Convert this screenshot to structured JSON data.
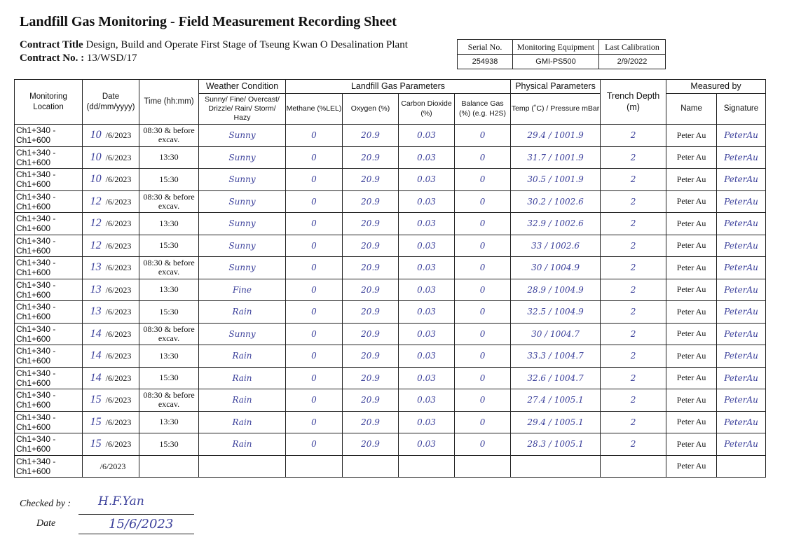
{
  "title": "Landfill Gas Monitoring - Field Measurement Recording Sheet",
  "contract_title_label": "Contract Title",
  "contract_title": "Design, Build and Operate First Stage of Tseung Kwan O Desalination Plant",
  "contract_no_label": "Contract No. :",
  "contract_no": "13/WSD/17",
  "equipment": {
    "headers": [
      "Serial No.",
      "Monitoring Equipment",
      "Last Calibration"
    ],
    "values": [
      "254938",
      "GMI-PS500",
      "2/9/2022"
    ]
  },
  "headers": {
    "location": "Monitoring Location",
    "date": "Date (dd/mm/yyyy)",
    "time": "Time (hh:mm)",
    "weather": "Weather Condition",
    "weather_sub": "Sunny/ Fine/ Overcast/ Drizzle/ Rain/ Storm/ Hazy",
    "gas": "Landfill Gas Parameters",
    "methane": "Methane (%LEL)",
    "oxygen": "Oxygen (%)",
    "co2": "Carbon Dioxide (%)",
    "balance": "Balance Gas (%) (e.g. H2S)",
    "physical": "Physical Parameters",
    "temp": "Temp (˚C) / Pressure mBar",
    "trench": "Trench Depth (m)",
    "measured": "Measured by",
    "name": "Name",
    "signature": "Signature"
  },
  "rows": [
    {
      "location": "Ch1+340 - Ch1+600",
      "day": "10",
      "date": "/6/2023",
      "time": "08:30 & before excav.",
      "weather": "Sunny",
      "methane": "0",
      "oxygen": "20.9",
      "co2": "0.03",
      "balance": "0",
      "temp_pressure": "29.4 / 1001.9",
      "trench": "2",
      "name": "Peter Au",
      "signature": "PeterAu"
    },
    {
      "location": "Ch1+340 - Ch1+600",
      "day": "10",
      "date": "/6/2023",
      "time": "13:30",
      "weather": "Sunny",
      "methane": "0",
      "oxygen": "20.9",
      "co2": "0.03",
      "balance": "0",
      "temp_pressure": "31.7 / 1001.9",
      "trench": "2",
      "name": "Peter Au",
      "signature": "PeterAu"
    },
    {
      "location": "Ch1+340 - Ch1+600",
      "day": "10",
      "date": "/6/2023",
      "time": "15:30",
      "weather": "Sunny",
      "methane": "0",
      "oxygen": "20.9",
      "co2": "0.03",
      "balance": "0",
      "temp_pressure": "30.5 / 1001.9",
      "trench": "2",
      "name": "Peter Au",
      "signature": "PeterAu"
    },
    {
      "location": "Ch1+340 - Ch1+600",
      "day": "12",
      "date": "/6/2023",
      "time": "08:30 & before excav.",
      "weather": "Sunny",
      "methane": "0",
      "oxygen": "20.9",
      "co2": "0.03",
      "balance": "0",
      "temp_pressure": "30.2 / 1002.6",
      "trench": "2",
      "name": "Peter Au",
      "signature": "PeterAu"
    },
    {
      "location": "Ch1+340 - Ch1+600",
      "day": "12",
      "date": "/6/2023",
      "time": "13:30",
      "weather": "Sunny",
      "methane": "0",
      "oxygen": "20.9",
      "co2": "0.03",
      "balance": "0",
      "temp_pressure": "32.9 / 1002.6",
      "trench": "2",
      "name": "Peter Au",
      "signature": "PeterAu"
    },
    {
      "location": "Ch1+340 - Ch1+600",
      "day": "12",
      "date": "/6/2023",
      "time": "15:30",
      "weather": "Sunny",
      "methane": "0",
      "oxygen": "20.9",
      "co2": "0.03",
      "balance": "0",
      "temp_pressure": "33 / 1002.6",
      "trench": "2",
      "name": "Peter Au",
      "signature": "PeterAu"
    },
    {
      "location": "Ch1+340 - Ch1+600",
      "day": "13",
      "date": "/6/2023",
      "time": "08:30 & before excav.",
      "weather": "Sunny",
      "methane": "0",
      "oxygen": "20.9",
      "co2": "0.03",
      "balance": "0",
      "temp_pressure": "30 / 1004.9",
      "trench": "2",
      "name": "Peter Au",
      "signature": "PeterAu"
    },
    {
      "location": "Ch1+340 - Ch1+600",
      "day": "13",
      "date": "/6/2023",
      "time": "13:30",
      "weather": "Fine",
      "methane": "0",
      "oxygen": "20.9",
      "co2": "0.03",
      "balance": "0",
      "temp_pressure": "28.9 / 1004.9",
      "trench": "2",
      "name": "Peter Au",
      "signature": "PeterAu"
    },
    {
      "location": "Ch1+340 - Ch1+600",
      "day": "13",
      "date": "/6/2023",
      "time": "15:30",
      "weather": "Rain",
      "methane": "0",
      "oxygen": "20.9",
      "co2": "0.03",
      "balance": "0",
      "temp_pressure": "32.5 / 1004.9",
      "trench": "2",
      "name": "Peter Au",
      "signature": "PeterAu"
    },
    {
      "location": "Ch1+340 - Ch1+600",
      "day": "14",
      "date": "/6/2023",
      "time": "08:30 & before excav.",
      "weather": "Sunny",
      "methane": "0",
      "oxygen": "20.9",
      "co2": "0.03",
      "balance": "0",
      "temp_pressure": "30 / 1004.7",
      "trench": "2",
      "name": "Peter Au",
      "signature": "PeterAu"
    },
    {
      "location": "Ch1+340 - Ch1+600",
      "day": "14",
      "date": "/6/2023",
      "time": "13:30",
      "weather": "Rain",
      "methane": "0",
      "oxygen": "20.9",
      "co2": "0.03",
      "balance": "0",
      "temp_pressure": "33.3 / 1004.7",
      "trench": "2",
      "name": "Peter Au",
      "signature": "PeterAu"
    },
    {
      "location": "Ch1+340 - Ch1+600",
      "day": "14",
      "date": "/6/2023",
      "time": "15:30",
      "weather": "Rain",
      "methane": "0",
      "oxygen": "20.9",
      "co2": "0.03",
      "balance": "0",
      "temp_pressure": "32.6 / 1004.7",
      "trench": "2",
      "name": "Peter Au",
      "signature": "PeterAu"
    },
    {
      "location": "Ch1+340 - Ch1+600",
      "day": "15",
      "date": "/6/2023",
      "time": "08:30 & before excav.",
      "weather": "Rain",
      "methane": "0",
      "oxygen": "20.9",
      "co2": "0.03",
      "balance": "0",
      "temp_pressure": "27.4 / 1005.1",
      "trench": "2",
      "name": "Peter Au",
      "signature": "PeterAu"
    },
    {
      "location": "Ch1+340 - Ch1+600",
      "day": "15",
      "date": "/6/2023",
      "time": "13:30",
      "weather": "Rain",
      "methane": "0",
      "oxygen": "20.9",
      "co2": "0.03",
      "balance": "0",
      "temp_pressure": "29.4 / 1005.1",
      "trench": "2",
      "name": "Peter Au",
      "signature": "PeterAu"
    },
    {
      "location": "Ch1+340 - Ch1+600",
      "day": "15",
      "date": "/6/2023",
      "time": "15:30",
      "weather": "Rain",
      "methane": "0",
      "oxygen": "20.9",
      "co2": "0.03",
      "balance": "0",
      "temp_pressure": "28.3 / 1005.1",
      "trench": "2",
      "name": "Peter Au",
      "signature": "PeterAu"
    },
    {
      "location": "Ch1+340 - Ch1+600",
      "day": "",
      "date": "/6/2023",
      "time": "",
      "weather": "",
      "methane": "",
      "oxygen": "",
      "co2": "",
      "balance": "",
      "temp_pressure": "",
      "trench": "",
      "name": "Peter Au",
      "signature": ""
    }
  ],
  "checked_by_label": "Checked by :",
  "checked_by": "H.F.Yan",
  "date_label": "Date",
  "checked_date": "15/6/2023",
  "colors": {
    "ink": "#3a3f9a"
  }
}
